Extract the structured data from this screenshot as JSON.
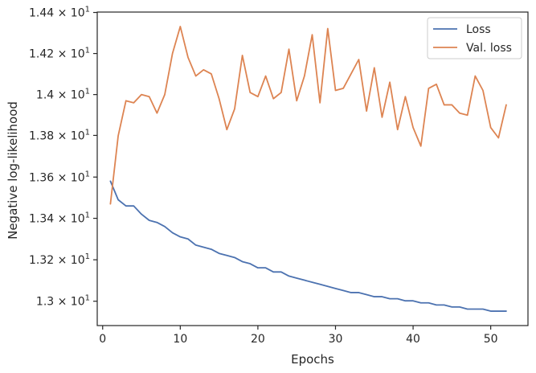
{
  "chart_data": {
    "type": "line",
    "xlabel": "Epochs",
    "ylabel": "Negative log-likelihood",
    "xlim": [
      -0.7,
      54.8
    ],
    "ylim": [
      12.88,
      14.4
    ],
    "x_ticks": [
      {
        "value": 0,
        "label": "0"
      },
      {
        "value": 10,
        "label": "10"
      },
      {
        "value": 20,
        "label": "20"
      },
      {
        "value": 30,
        "label": "30"
      },
      {
        "value": 40,
        "label": "40"
      },
      {
        "value": 50,
        "label": "50"
      }
    ],
    "y_ticks": [
      {
        "value": 12.998,
        "mantissa": "1.3 × 10",
        "exp": "1"
      },
      {
        "value": 13.199,
        "mantissa": "1.32 × 10",
        "exp": "1"
      },
      {
        "value": 13.4,
        "mantissa": "1.34 × 10",
        "exp": "1"
      },
      {
        "value": 13.6,
        "mantissa": "1.36 × 10",
        "exp": "1"
      },
      {
        "value": 13.802,
        "mantissa": "1.38 × 10",
        "exp": "1"
      },
      {
        "value": 14.0,
        "mantissa": "1.4 × 10",
        "exp": "1"
      },
      {
        "value": 14.199,
        "mantissa": "1.42 × 10",
        "exp": "1"
      },
      {
        "value": 14.398,
        "mantissa": "1.44 × 10",
        "exp": "1"
      }
    ],
    "legend_position": "top-right",
    "series": [
      {
        "name": "Loss",
        "color": "#4c72b0",
        "x": [
          1,
          2,
          3,
          4,
          5,
          6,
          7,
          8,
          9,
          10,
          11,
          12,
          13,
          14,
          15,
          16,
          17,
          18,
          19,
          20,
          21,
          22,
          23,
          24,
          25,
          26,
          27,
          28,
          29,
          30,
          31,
          32,
          33,
          34,
          35,
          36,
          37,
          38,
          39,
          40,
          41,
          42,
          43,
          44,
          45,
          46,
          47,
          48,
          49,
          50,
          51,
          52
        ],
        "values": [
          13.58,
          13.49,
          13.46,
          13.46,
          13.42,
          13.39,
          13.38,
          13.36,
          13.33,
          13.31,
          13.3,
          13.27,
          13.26,
          13.25,
          13.23,
          13.22,
          13.21,
          13.19,
          13.18,
          13.16,
          13.16,
          13.14,
          13.14,
          13.12,
          13.11,
          13.1,
          13.09,
          13.08,
          13.07,
          13.06,
          13.05,
          13.04,
          13.04,
          13.03,
          13.02,
          13.02,
          13.01,
          13.01,
          13.0,
          13.0,
          12.99,
          12.99,
          12.98,
          12.98,
          12.97,
          12.97,
          12.96,
          12.96,
          12.96,
          12.95,
          12.95,
          12.95
        ]
      },
      {
        "name": "Val. loss",
        "color": "#dd8452",
        "x": [
          1,
          2,
          3,
          4,
          5,
          6,
          7,
          8,
          9,
          10,
          11,
          12,
          13,
          14,
          15,
          16,
          17,
          18,
          19,
          20,
          21,
          22,
          23,
          24,
          25,
          26,
          27,
          28,
          29,
          30,
          31,
          32,
          33,
          34,
          35,
          36,
          37,
          38,
          39,
          40,
          41,
          42,
          43,
          44,
          45,
          46,
          47,
          48,
          49,
          50,
          51,
          52
        ],
        "values": [
          13.47,
          13.8,
          13.97,
          13.96,
          14.0,
          13.99,
          13.91,
          14.0,
          14.2,
          14.33,
          14.18,
          14.09,
          14.12,
          14.1,
          13.98,
          13.83,
          13.93,
          14.19,
          14.01,
          13.99,
          14.09,
          13.98,
          14.01,
          14.22,
          13.97,
          14.09,
          14.29,
          13.96,
          14.32,
          14.02,
          14.03,
          14.1,
          14.17,
          13.92,
          14.13,
          13.89,
          14.06,
          13.83,
          13.99,
          13.84,
          13.75,
          14.03,
          14.05,
          13.95,
          13.95,
          13.91,
          13.9,
          14.09,
          14.02,
          13.84,
          13.79,
          13.95
        ]
      }
    ]
  }
}
